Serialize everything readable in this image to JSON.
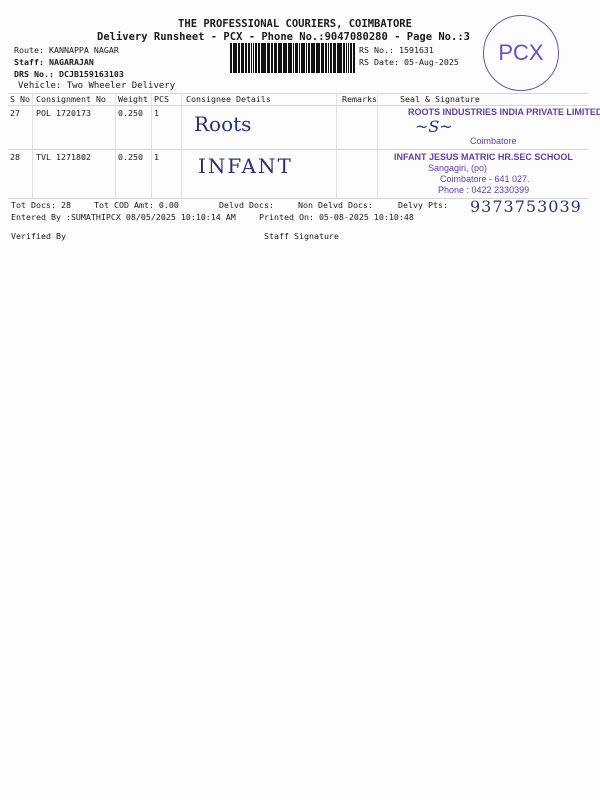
{
  "header": {
    "title": "THE PROFESSIONAL COURIERS, COIMBATORE",
    "subtitle": "Delivery Runsheet - PCX - Phone No.:9047080280 - Page No.:3",
    "route": "Route: KANNAPPA NAGAR",
    "staff": "Staff: NAGARAJAN",
    "drs": "DRS No.: DCJB159163103",
    "vehicle": "Vehicle: Two Wheeler Delivery",
    "rs_no": "RS No.: 1591631",
    "rs_date": "RS Date: 05-Aug-2025",
    "stamp_logo": "PCX"
  },
  "table": {
    "columns": [
      "S No",
      "Consignment No",
      "Weight",
      "PCS",
      "Consignee Details",
      "Remarks",
      "Seal & Signature"
    ],
    "rows": [
      {
        "sno": "27",
        "consignment": "POL 1720173",
        "weight": "0.250",
        "pcs": "1",
        "consignee_handwritten": "Roots",
        "remarks": "",
        "seal": [
          "ROOTS INDUSTRIES INDIA PRIVATE LIMITED",
          "Coimbatore"
        ]
      },
      {
        "sno": "28",
        "consignment": "TVL 1271802",
        "weight": "0.250",
        "pcs": "1",
        "consignee_handwritten": "INFANT",
        "remarks": "",
        "seal": [
          "INFANT JESUS MATRIC HR.SEC SCHOOL",
          "Sangagiri, (po)",
          "Coimbatore - 641 027.",
          "Phone : 0422 2330399"
        ]
      }
    ]
  },
  "footer": {
    "tot_docs": "Tot Docs:  28",
    "tot_cod": "Tot COD Amt:    0.00",
    "delvd_docs": "Delvd Docs:",
    "non_delvd_docs": "Non Delvd Docs:",
    "delvy_pts": "Delvy Pts:",
    "handwritten_phone": "9373753039",
    "entered_by": "Entered By :SUMATHIPCX 08/05/2025 10:10:14 AM",
    "printed_on": "Printed On: 05-08-2025 10:10:48",
    "verified_by": "Verified By",
    "staff_signature": "Staff Signature"
  },
  "colors": {
    "ink": "#1a1a1a",
    "stamp": "#5b3fb0",
    "pen": "#2a2f7a"
  }
}
